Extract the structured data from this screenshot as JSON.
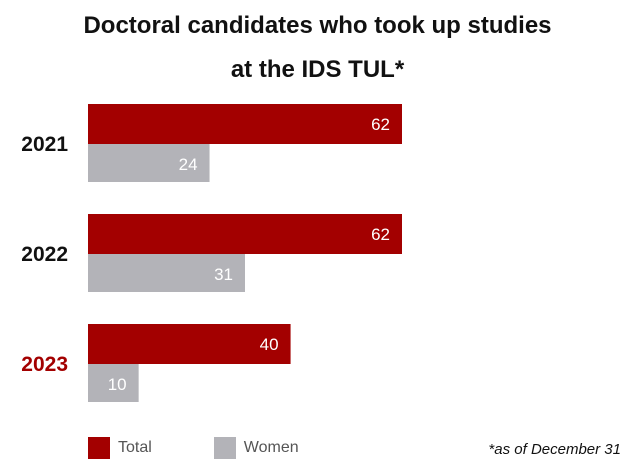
{
  "chart_data": {
    "type": "bar",
    "orientation": "horizontal",
    "title_lines": [
      "Doctoral candidates who took up studies",
      "at the IDS TUL*"
    ],
    "categories": [
      "2021",
      "2022",
      "2023"
    ],
    "highlight_category": "2023",
    "series": [
      {
        "name": "Total",
        "values": [
          62,
          62,
          40
        ],
        "color": "#a30000"
      },
      {
        "name": "Women",
        "values": [
          24,
          31,
          10
        ],
        "color": "#b3b3b8"
      }
    ],
    "xlim": [
      0,
      100
    ],
    "grid": false,
    "legend": "bottom-left",
    "note": "*as of December 31",
    "category_color": "#111111",
    "highlight_color": "#a30000"
  }
}
